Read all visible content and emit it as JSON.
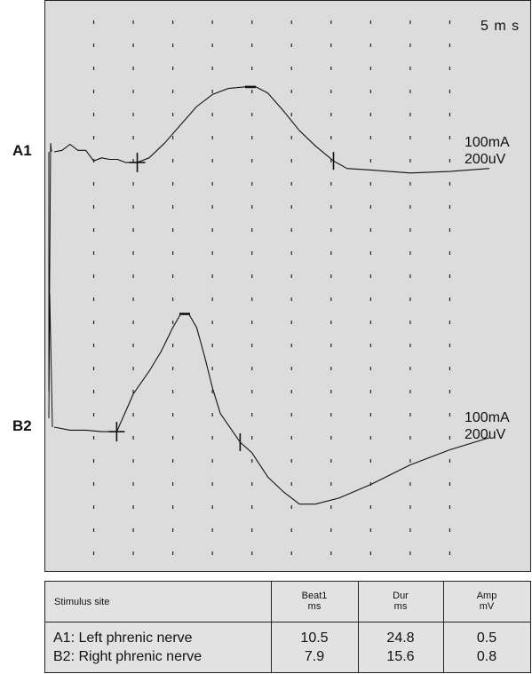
{
  "channels": [
    {
      "id": "A1",
      "scale_current": "100mA",
      "scale_voltage": "200uV"
    },
    {
      "id": "B2",
      "scale_current": "100mA",
      "scale_voltage": "200uV"
    }
  ],
  "timebase": "5 m s",
  "table": {
    "headers": [
      {
        "label": "Stimulus site",
        "unit": ""
      },
      {
        "label": "Beat1",
        "unit": "ms"
      },
      {
        "label": "Dur",
        "unit": "ms"
      },
      {
        "label": "Amp",
        "unit": "mV"
      }
    ],
    "rows": [
      {
        "site": "A1: Left phrenic nerve",
        "beat1": "10.5",
        "dur": "24.8",
        "amp": "0.5"
      },
      {
        "site": "B2: Right phrenic nerve",
        "beat1": "7.9",
        "dur": "15.6",
        "amp": "0.8"
      }
    ]
  },
  "chart_data": {
    "type": "line",
    "x_unit": "ms",
    "series": [
      {
        "name": "A1",
        "x": [
          0,
          1,
          2,
          3,
          4,
          5,
          6,
          7,
          8,
          9,
          10.5,
          12,
          14,
          16,
          18,
          20,
          22,
          24,
          25.5,
          27,
          29,
          31,
          33,
          35.3,
          37,
          40,
          45,
          50,
          55
        ],
        "y": [
          0,
          0.01,
          0.05,
          0.01,
          0.01,
          -0.06,
          -0.04,
          -0.05,
          -0.05,
          -0.07,
          -0.07,
          -0.04,
          0.06,
          0.18,
          0.3,
          0.38,
          0.42,
          0.43,
          0.43,
          0.39,
          0.27,
          0.14,
          0.04,
          -0.06,
          -0.11,
          -0.12,
          -0.14,
          -0.13,
          -0.11
        ]
      },
      {
        "name": "B2",
        "x": [
          0,
          2,
          4,
          6,
          7.9,
          9,
          10,
          12,
          13.5,
          15,
          16,
          17,
          18,
          19,
          20,
          21,
          23.5,
          25,
          27,
          29,
          31,
          33,
          36,
          40,
          45,
          50,
          55
        ],
        "y": [
          0,
          -0.02,
          -0.02,
          -0.03,
          -0.03,
          0.1,
          0.22,
          0.37,
          0.5,
          0.66,
          0.75,
          0.75,
          0.66,
          0.47,
          0.26,
          0.09,
          -0.1,
          -0.17,
          -0.33,
          -0.43,
          -0.51,
          -0.51,
          -0.47,
          -0.38,
          -0.25,
          -0.15,
          -0.07
        ]
      }
    ],
    "markers": [
      {
        "series": "A1",
        "type": "onset",
        "x": 10.5
      },
      {
        "series": "A1",
        "type": "peak",
        "x": 24.8
      },
      {
        "series": "A1",
        "type": "end",
        "x": 35.3
      },
      {
        "series": "B2",
        "type": "onset",
        "x": 7.9
      },
      {
        "series": "B2",
        "type": "peak",
        "x": 16.5
      },
      {
        "series": "B2",
        "type": "end",
        "x": 23.5
      }
    ],
    "xlim": [
      0,
      55
    ],
    "grid": "dashed vertical"
  }
}
